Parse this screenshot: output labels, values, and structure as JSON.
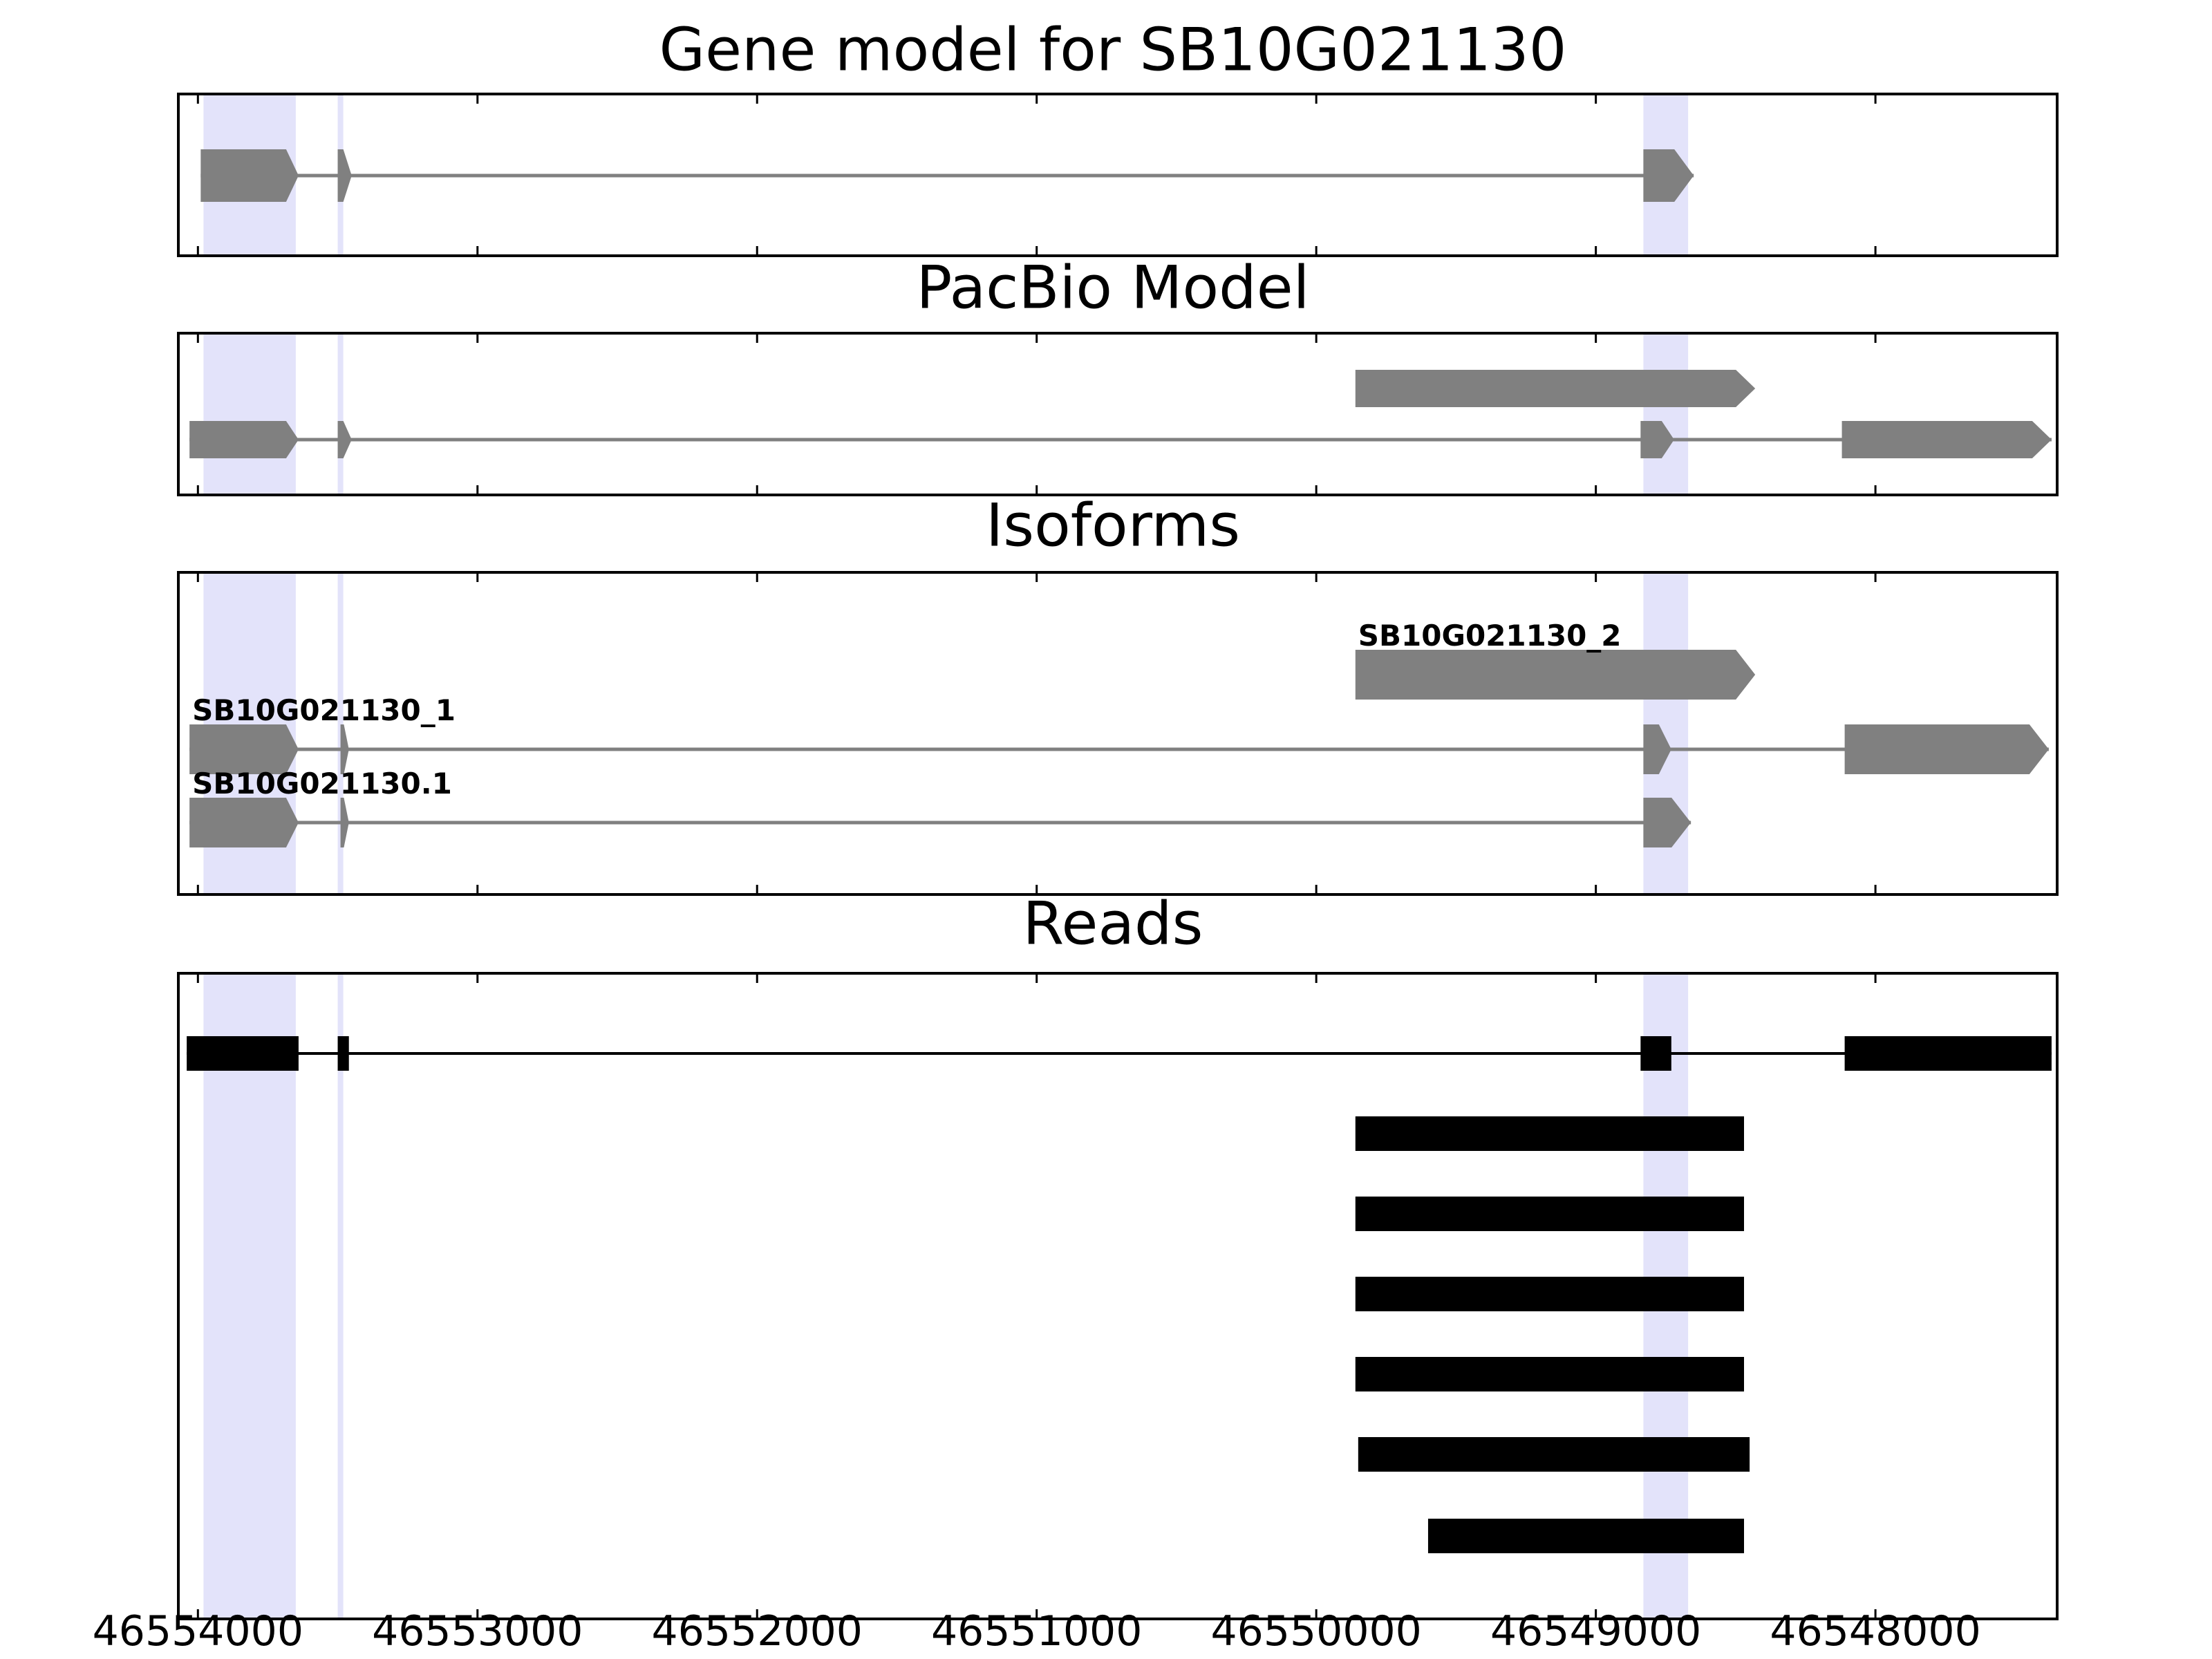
{
  "colors": {
    "highlight": "#e3e3fa",
    "model_feature": "#808080",
    "read_feature": "#000000",
    "frame": "#000000"
  },
  "chart_data": {
    "type": "gene-track",
    "x_axis": {
      "xlim": [
        46554070,
        46547350
      ],
      "reversed": true,
      "ticks": [
        46554000,
        46553000,
        46552000,
        46551000,
        46550000,
        46549000,
        46548000
      ],
      "tick_labels": [
        "46554000",
        "46553000",
        "46552000",
        "46551000",
        "46550000",
        "46549000",
        "46548000"
      ]
    },
    "highlight_regions": [
      [
        46553980,
        46553650
      ],
      [
        46553500,
        46553480
      ],
      [
        46548830,
        46548670
      ]
    ],
    "panels": [
      {
        "title": "Gene model for SB10G021130",
        "tracks": [
          {
            "label": "",
            "exons": [
              [
                46553990,
                46553640
              ],
              [
                46553500,
                46553450
              ],
              [
                46548830,
                46548650
              ]
            ]
          }
        ]
      },
      {
        "title": "PacBio Model",
        "tracks": [
          {
            "label": "",
            "exons": [
              [
                46549860,
                46548430
              ]
            ]
          },
          {
            "label": "",
            "exons": [
              [
                46554030,
                46553640
              ],
              [
                46553500,
                46553450
              ],
              [
                46548840,
                46548720
              ],
              [
                46548120,
                46547370
              ]
            ]
          }
        ]
      },
      {
        "title": "Isoforms",
        "tracks": [
          {
            "label": "SB10G021130_2",
            "exons": [
              [
                46549860,
                46548430
              ]
            ]
          },
          {
            "label": "SB10G021130_1",
            "exons": [
              [
                46554030,
                46553640
              ],
              [
                46553490,
                46553460
              ],
              [
                46548830,
                46548730
              ],
              [
                46548110,
                46547380
              ]
            ]
          },
          {
            "label": "SB10G021130.1",
            "exons": [
              [
                46554030,
                46553640
              ],
              [
                46553490,
                46553460
              ],
              [
                46548830,
                46548660
              ]
            ]
          }
        ]
      },
      {
        "title": "Reads",
        "tracks": [
          {
            "label": "",
            "exons": [
              [
                46554040,
                46553640
              ],
              [
                46553500,
                46553460
              ],
              [
                46548840,
                46548730
              ],
              [
                46548110,
                46547370
              ]
            ]
          },
          {
            "label": "",
            "exons": [
              [
                46549860,
                46548470
              ]
            ]
          },
          {
            "label": "",
            "exons": [
              [
                46549860,
                46548470
              ]
            ]
          },
          {
            "label": "",
            "exons": [
              [
                46549860,
                46548470
              ]
            ]
          },
          {
            "label": "",
            "exons": [
              [
                46549860,
                46548470
              ]
            ]
          },
          {
            "label": "",
            "exons": [
              [
                46549850,
                46548450
              ]
            ]
          },
          {
            "label": "",
            "exons": [
              [
                46549600,
                46548470
              ]
            ]
          }
        ]
      }
    ]
  }
}
